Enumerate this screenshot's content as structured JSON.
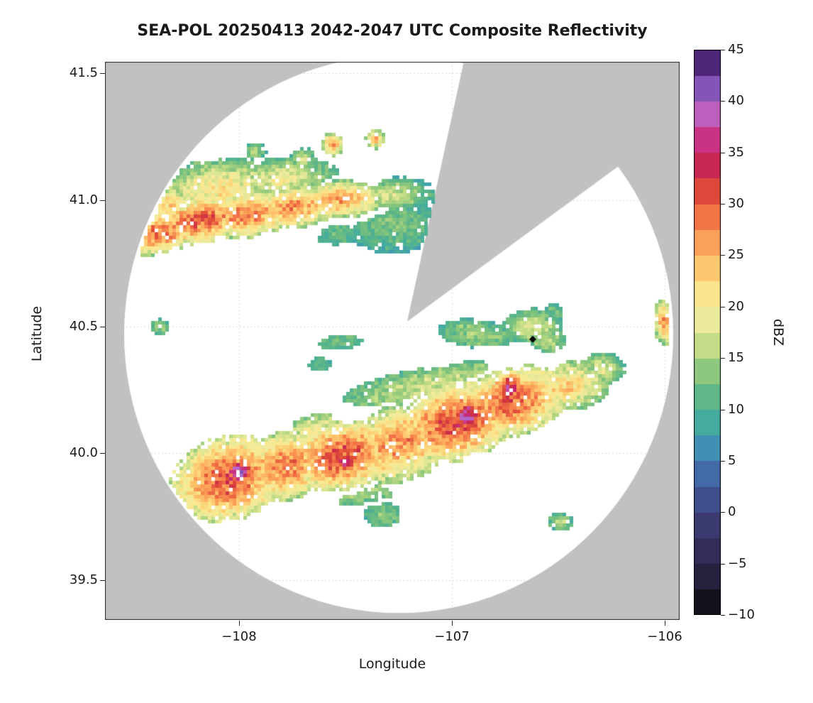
{
  "figure": {
    "title": "SEA-POL 20250413 2042-2047 UTC Composite Reflectivity",
    "xlabel": "Longitude",
    "ylabel": "Latitude",
    "colorbar_label": "dBZ"
  },
  "chart_data": {
    "type": "heatmap",
    "title": "SEA-POL 20250413 2042-2047 UTC Composite Reflectivity",
    "xlabel": "Longitude",
    "ylabel": "Latitude",
    "xlim": [
      -108.63,
      -105.93
    ],
    "ylim": [
      39.343,
      41.545
    ],
    "x_ticks": [
      -108,
      -107,
      -106
    ],
    "x_tick_labels": [
      "−108",
      "−107",
      "−106"
    ],
    "y_ticks": [
      39.5,
      40.0,
      40.5,
      41.0,
      41.5
    ],
    "y_tick_labels": [
      "39.5",
      "40.0",
      "40.5",
      "41.0",
      "41.5"
    ],
    "grid": true,
    "colorbar": {
      "label": "dBZ",
      "min": -10,
      "max": 45,
      "ticks": [
        45,
        40,
        35,
        30,
        25,
        20,
        15,
        10,
        5,
        0,
        -5,
        -10
      ],
      "tick_labels": [
        "45",
        "40",
        "35",
        "30",
        "25",
        "20",
        "15",
        "10",
        "5",
        "0",
        "−5",
        "−10"
      ],
      "step": 2.5,
      "colormap_stops": [
        [
          -10,
          "#0a0a0a"
        ],
        [
          -7,
          "#231c38"
        ],
        [
          -4,
          "#322b55"
        ],
        [
          -1,
          "#3b3a72"
        ],
        [
          2,
          "#3f5492"
        ],
        [
          5,
          "#4379b5"
        ],
        [
          7,
          "#3f9db2"
        ],
        [
          9,
          "#46ad9c"
        ],
        [
          11,
          "#5ab588"
        ],
        [
          13,
          "#7ec27d"
        ],
        [
          15,
          "#a9d27f"
        ],
        [
          17,
          "#d2e28b"
        ],
        [
          19,
          "#f0eb9d"
        ],
        [
          21,
          "#fae88f"
        ],
        [
          23,
          "#fcd276"
        ],
        [
          25,
          "#fdb562"
        ],
        [
          27,
          "#fa9553"
        ],
        [
          29,
          "#f17046"
        ],
        [
          31,
          "#e04c38"
        ],
        [
          33,
          "#cb2e47"
        ],
        [
          35,
          "#c41f68"
        ],
        [
          37,
          "#cd3f96"
        ],
        [
          39,
          "#bb63c1"
        ],
        [
          40,
          "#a36fd0"
        ],
        [
          42,
          "#7146a8"
        ],
        [
          44,
          "#4a2373"
        ],
        [
          45,
          "#36154f"
        ]
      ]
    },
    "radar_coverage": {
      "center_lon": -107.25,
      "center_lat": 40.47,
      "radius_lon_deg": 1.29,
      "radius_lat_deg": 1.1,
      "outside_color": "#c1c1c1",
      "inside_color": "#ffffff",
      "blocked_sector": {
        "apex_lon": -107.21,
        "apex_lat": 40.52,
        "azimuth_deg": [
          12.3,
          53.7
        ]
      }
    },
    "marker": {
      "lon": -106.62,
      "lat": 40.45,
      "symbol": "diamond",
      "color": "#000000"
    },
    "echoes": [
      {
        "lon": -108.38,
        "lat": 40.87,
        "sx": 0.14,
        "sy": 0.055,
        "rot": 8,
        "peak_dbz": 29
      },
      {
        "lon": -108.18,
        "lat": 40.92,
        "sx": 0.16,
        "sy": 0.06,
        "rot": 8,
        "peak_dbz": 30
      },
      {
        "lon": -107.97,
        "lat": 40.94,
        "sx": 0.16,
        "sy": 0.06,
        "rot": 5,
        "peak_dbz": 28
      },
      {
        "lon": -107.75,
        "lat": 40.97,
        "sx": 0.15,
        "sy": 0.055,
        "rot": 5,
        "peak_dbz": 27
      },
      {
        "lon": -107.53,
        "lat": 41.0,
        "sx": 0.15,
        "sy": 0.05,
        "rot": 3,
        "peak_dbz": 26
      },
      {
        "lon": -108.1,
        "lat": 41.04,
        "sx": 0.22,
        "sy": 0.08,
        "rot": 5,
        "peak_dbz": 21
      },
      {
        "lon": -107.8,
        "lat": 41.08,
        "sx": 0.18,
        "sy": 0.06,
        "rot": 3,
        "peak_dbz": 19
      },
      {
        "lon": -108.33,
        "lat": 40.97,
        "sx": 0.1,
        "sy": 0.06,
        "rot": 8,
        "peak_dbz": 23
      },
      {
        "lon": -107.3,
        "lat": 41.02,
        "sx": 0.15,
        "sy": 0.05,
        "rot": 0,
        "peak_dbz": 17
      },
      {
        "lon": -107.28,
        "lat": 40.9,
        "sx": 0.2,
        "sy": 0.09,
        "rot": 0,
        "peak_dbz": 13
      },
      {
        "lon": -107.15,
        "lat": 40.93,
        "sx": 0.1,
        "sy": 0.06,
        "rot": 0,
        "peak_dbz": 11
      },
      {
        "lon": -107.33,
        "lat": 40.8,
        "sx": 0.1,
        "sy": 0.05,
        "rot": 0,
        "peak_dbz": 9
      },
      {
        "lon": -107.2,
        "lat": 40.83,
        "sx": 0.07,
        "sy": 0.04,
        "rot": 0,
        "peak_dbz": 8
      },
      {
        "lon": -107.55,
        "lat": 40.88,
        "sx": 0.12,
        "sy": 0.06,
        "rot": 0,
        "peak_dbz": 12
      },
      {
        "lon": -107.56,
        "lat": 41.22,
        "sx": 0.035,
        "sy": 0.03,
        "rot": 0,
        "peak_dbz": 27
      },
      {
        "lon": -107.36,
        "lat": 41.24,
        "sx": 0.03,
        "sy": 0.025,
        "rot": 0,
        "peak_dbz": 25
      },
      {
        "lon": -107.7,
        "lat": 41.16,
        "sx": 0.05,
        "sy": 0.03,
        "rot": 0,
        "peak_dbz": 17
      },
      {
        "lon": -107.92,
        "lat": 41.19,
        "sx": 0.04,
        "sy": 0.03,
        "rot": 0,
        "peak_dbz": 15
      },
      {
        "lon": -107.5,
        "lat": 40.3,
        "sx": 0.24,
        "sy": 0.05,
        "rot": 8,
        "peak_dbz": 5
      },
      {
        "lon": -107.32,
        "lat": 40.36,
        "sx": 0.2,
        "sy": 0.045,
        "rot": 8,
        "peak_dbz": 6
      },
      {
        "lon": -107.25,
        "lat": 40.44,
        "sx": 0.12,
        "sy": 0.04,
        "rot": 5,
        "peak_dbz": 8
      },
      {
        "lon": -107.52,
        "lat": 40.44,
        "sx": 0.14,
        "sy": 0.04,
        "rot": 5,
        "peak_dbz": 12
      },
      {
        "lon": -107.36,
        "lat": 40.55,
        "sx": 0.09,
        "sy": 0.035,
        "rot": 0,
        "peak_dbz": 3
      },
      {
        "lon": -107.62,
        "lat": 40.35,
        "sx": 0.1,
        "sy": 0.05,
        "rot": 0,
        "peak_dbz": 11
      },
      {
        "lon": -107.3,
        "lat": 40.63,
        "sx": 0.06,
        "sy": 0.035,
        "rot": 0,
        "peak_dbz": 7
      },
      {
        "lon": -106.88,
        "lat": 40.47,
        "sx": 0.16,
        "sy": 0.05,
        "rot": -5,
        "peak_dbz": 15
      },
      {
        "lon": -106.62,
        "lat": 40.5,
        "sx": 0.1,
        "sy": 0.05,
        "rot": 0,
        "peak_dbz": 18
      },
      {
        "lon": -106.55,
        "lat": 40.44,
        "sx": 0.07,
        "sy": 0.04,
        "rot": 0,
        "peak_dbz": 16
      },
      {
        "lon": -106.52,
        "lat": 40.56,
        "sx": 0.05,
        "sy": 0.03,
        "rot": 0,
        "peak_dbz": 13
      },
      {
        "lon": -108.05,
        "lat": 39.9,
        "sx": 0.18,
        "sy": 0.11,
        "rot": 10,
        "peak_dbz": 31
      },
      {
        "lon": -108.0,
        "lat": 39.93,
        "sx": 0.055,
        "sy": 0.04,
        "rot": 10,
        "peak_dbz": 38
      },
      {
        "lon": -107.78,
        "lat": 39.95,
        "sx": 0.16,
        "sy": 0.09,
        "rot": 10,
        "peak_dbz": 28
      },
      {
        "lon": -107.52,
        "lat": 39.99,
        "sx": 0.18,
        "sy": 0.09,
        "rot": 10,
        "peak_dbz": 31
      },
      {
        "lon": -107.5,
        "lat": 39.97,
        "sx": 0.05,
        "sy": 0.035,
        "rot": 10,
        "peak_dbz": 36
      },
      {
        "lon": -107.25,
        "lat": 40.04,
        "sx": 0.2,
        "sy": 0.1,
        "rot": 12,
        "peak_dbz": 27
      },
      {
        "lon": -106.98,
        "lat": 40.12,
        "sx": 0.2,
        "sy": 0.1,
        "rot": 12,
        "peak_dbz": 31
      },
      {
        "lon": -106.93,
        "lat": 40.15,
        "sx": 0.06,
        "sy": 0.045,
        "rot": 12,
        "peak_dbz": 38
      },
      {
        "lon": -106.72,
        "lat": 40.2,
        "sx": 0.18,
        "sy": 0.09,
        "rot": 12,
        "peak_dbz": 30
      },
      {
        "lon": -106.73,
        "lat": 40.26,
        "sx": 0.05,
        "sy": 0.04,
        "rot": 12,
        "peak_dbz": 36
      },
      {
        "lon": -106.47,
        "lat": 40.26,
        "sx": 0.15,
        "sy": 0.07,
        "rot": 10,
        "peak_dbz": 23
      },
      {
        "lon": -107.1,
        "lat": 40.27,
        "sx": 0.35,
        "sy": 0.06,
        "rot": 10,
        "peak_dbz": 17
      },
      {
        "lon": -107.45,
        "lat": 39.86,
        "sx": 0.25,
        "sy": 0.07,
        "rot": 8,
        "peak_dbz": 15
      },
      {
        "lon": -107.33,
        "lat": 39.76,
        "sx": 0.1,
        "sy": 0.06,
        "rot": 0,
        "peak_dbz": 13
      },
      {
        "lon": -107.62,
        "lat": 40.08,
        "sx": 0.15,
        "sy": 0.06,
        "rot": 10,
        "peak_dbz": 20
      },
      {
        "lon": -106.3,
        "lat": 40.33,
        "sx": 0.08,
        "sy": 0.05,
        "rot": 0,
        "peak_dbz": 18
      },
      {
        "lon": -106.0,
        "lat": 40.52,
        "sx": 0.035,
        "sy": 0.06,
        "rot": 0,
        "peak_dbz": 26
      },
      {
        "lon": -108.37,
        "lat": 40.5,
        "sx": 0.035,
        "sy": 0.025,
        "rot": 0,
        "peak_dbz": 15
      },
      {
        "lon": -106.49,
        "lat": 39.73,
        "sx": 0.045,
        "sy": 0.028,
        "rot": 0,
        "peak_dbz": 16
      }
    ]
  }
}
